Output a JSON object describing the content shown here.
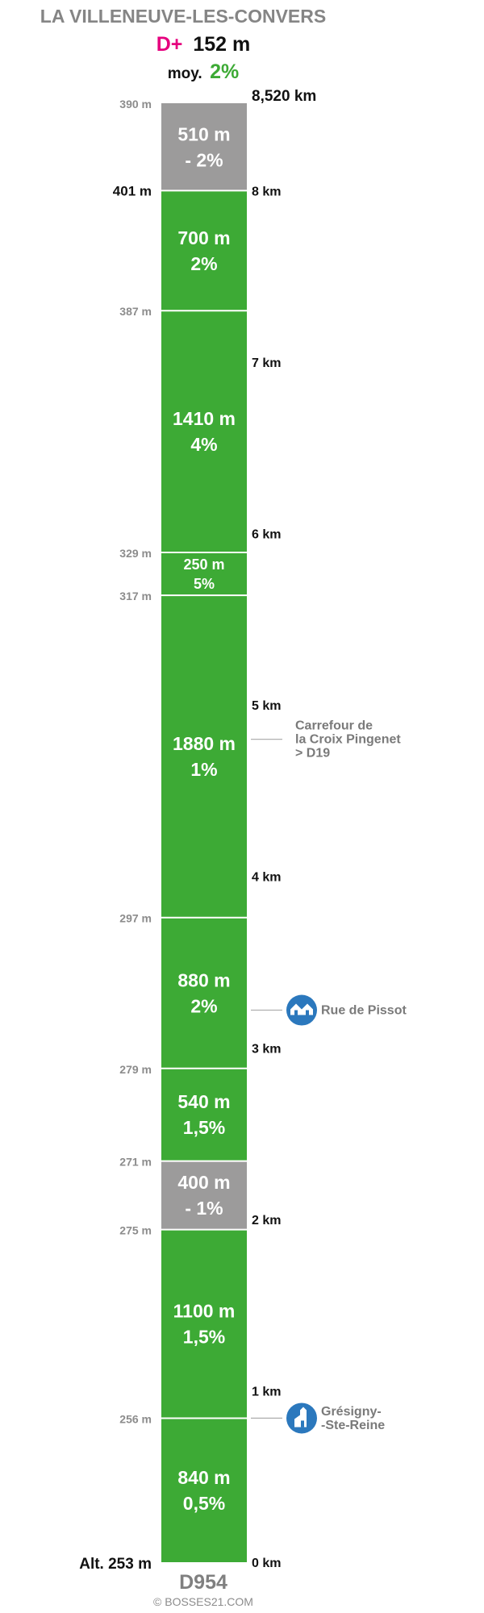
{
  "header": {
    "title": "LA VILLENEUVE-LES-CONVERS",
    "dplus_label": "D+",
    "dplus_value": "152 m",
    "avg_label": "moy.",
    "avg_value": "2%"
  },
  "footer": {
    "road": "D954",
    "copyright": "© BOSSES21.COM"
  },
  "colors": {
    "climb": "#3daa35",
    "descent": "#9c9b9b",
    "accent": "#e6007e",
    "poi": "#2b78bd",
    "muted": "#8c8c8c"
  },
  "chart_data": {
    "type": "bar",
    "title": "LA VILLENEUVE-LES-CONVERS",
    "total_distance_label": "8,520 km",
    "km_markers": [
      "0 km",
      "1 km",
      "2 km",
      "3 km",
      "4 km",
      "5 km",
      "6 km",
      "7 km",
      "8 km"
    ],
    "segments": [
      {
        "length_m": 840,
        "length_label": "840 m",
        "grade_label": "0,5%",
        "descending": false,
        "alt_end_label": "256 m"
      },
      {
        "length_m": 1100,
        "length_label": "1100 m",
        "grade_label": "1,5%",
        "descending": false,
        "alt_end_label": "275 m"
      },
      {
        "length_m": 400,
        "length_label": "400 m",
        "grade_label": "- 1%",
        "descending": true,
        "alt_end_label": "271 m"
      },
      {
        "length_m": 540,
        "length_label": "540 m",
        "grade_label": "1,5%",
        "descending": false,
        "alt_end_label": "279 m"
      },
      {
        "length_m": 880,
        "length_label": "880 m",
        "grade_label": "2%",
        "descending": false,
        "alt_end_label": "297 m"
      },
      {
        "length_m": 1880,
        "length_label": "1880 m",
        "grade_label": "1%",
        "descending": false,
        "alt_end_label": "317 m"
      },
      {
        "length_m": 250,
        "length_label": "250 m",
        "grade_label": "5%",
        "descending": false,
        "alt_end_label": "329 m"
      },
      {
        "length_m": 1410,
        "length_label": "1410 m",
        "grade_label": "4%",
        "descending": false,
        "alt_end_label": "387 m"
      },
      {
        "length_m": 700,
        "length_label": "700 m",
        "grade_label": "2%",
        "descending": false,
        "alt_end_label": "401 m"
      },
      {
        "length_m": 510,
        "length_label": "510 m",
        "grade_label": "- 2%",
        "descending": true,
        "alt_end_label": "390 m"
      }
    ],
    "start_alt_label": "Alt. 253 m",
    "points_of_interest": [
      {
        "km": 4.8,
        "lines": [
          "Carrefour de",
          "la Croix Pingenet",
          "> D19"
        ],
        "icon": "none"
      },
      {
        "km": 3.22,
        "lines": [
          "Rue de Pissot"
        ],
        "icon": "houses-icon"
      },
      {
        "km": 0.84,
        "lines": [
          "Grésigny-",
          "-Ste-Reine"
        ],
        "icon": "church-icon"
      }
    ]
  }
}
